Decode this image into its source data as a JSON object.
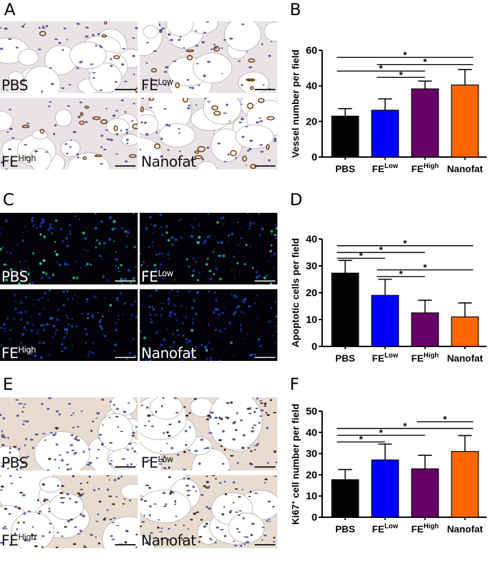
{
  "figure": {
    "panels": {
      "A": {
        "letter": "A",
        "type": "micrograph",
        "stain": "brightfield",
        "images": [
          {
            "label": "PBS",
            "sup": ""
          },
          {
            "label": "FE",
            "sup": "Low"
          },
          {
            "label": "FE",
            "sup": "High"
          },
          {
            "label": "Nanofat",
            "sup": ""
          }
        ]
      },
      "C": {
        "letter": "C",
        "type": "micrograph",
        "stain": "fluorescence",
        "images": [
          {
            "label": "PBS",
            "sup": ""
          },
          {
            "label": "FE",
            "sup": "Low"
          },
          {
            "label": "FE",
            "sup": "High"
          },
          {
            "label": "Nanofat",
            "sup": ""
          }
        ]
      },
      "E": {
        "letter": "E",
        "type": "micrograph",
        "stain": "brightfield",
        "images": [
          {
            "label": "PBS",
            "sup": ""
          },
          {
            "label": "FE",
            "sup": "Low"
          },
          {
            "label": "FE",
            "sup": "High"
          },
          {
            "label": "Nanofat",
            "sup": ""
          }
        ]
      }
    },
    "colors": {
      "PBS": "#000000",
      "FE_Low": "#0000ff",
      "FE_High": "#660066",
      "Nanofat": "#ff6600"
    }
  },
  "chart_data": [
    {
      "panel": "B",
      "type": "bar",
      "title": "",
      "xlabel": "",
      "ylabel": "Vessel number per field",
      "categories": [
        "PBS",
        "FE^Low",
        "FE^High",
        "Nanofat"
      ],
      "category_parts": [
        [
          "PBS",
          ""
        ],
        [
          "FE",
          "Low"
        ],
        [
          "FE",
          "High"
        ],
        [
          "Nanofat",
          ""
        ]
      ],
      "values": [
        23,
        26.3,
        38.3,
        40.5
      ],
      "error_upper": [
        27.2,
        32.7,
        42.7,
        49.2
      ],
      "ylim": [
        0,
        60
      ],
      "yticks": [
        0,
        20,
        40,
        60
      ],
      "grid": false,
      "legend": "none",
      "significance": [
        {
          "from": 0,
          "to": 3,
          "level": 56,
          "label": "*"
        },
        {
          "from": 1,
          "to": 3,
          "level": 52,
          "label": "*"
        },
        {
          "from": 0,
          "to": 2,
          "level": 48.3,
          "label": "*"
        },
        {
          "from": 1,
          "to": 2,
          "level": 44.8,
          "label": "*"
        }
      ]
    },
    {
      "panel": "D",
      "type": "bar",
      "title": "",
      "xlabel": "",
      "ylabel": "Apoptotic cells per field",
      "categories": [
        "PBS",
        "FE^Low",
        "FE^High",
        "Nanofat"
      ],
      "category_parts": [
        [
          "PBS",
          ""
        ],
        [
          "FE",
          "Low"
        ],
        [
          "FE",
          "High"
        ],
        [
          "Nanofat",
          ""
        ]
      ],
      "values": [
        27.3,
        19,
        12.5,
        11
      ],
      "error_upper": [
        32,
        25,
        17.2,
        16.2
      ],
      "ylim": [
        0,
        40
      ],
      "yticks": [
        0,
        10,
        20,
        30,
        40
      ],
      "grid": false,
      "legend": "none",
      "significance": [
        {
          "from": 0,
          "to": 3,
          "level": 37.5,
          "label": "*"
        },
        {
          "from": 0,
          "to": 2,
          "level": 35,
          "label": "*"
        },
        {
          "from": 0,
          "to": 1,
          "level": 32.8,
          "label": "*"
        },
        {
          "from": 1,
          "to": 3,
          "level": 28.5,
          "label": "*"
        },
        {
          "from": 1,
          "to": 2,
          "level": 26,
          "label": "*"
        }
      ]
    },
    {
      "panel": "F",
      "type": "bar",
      "title": "",
      "xlabel": "",
      "ylabel": "Ki67+ cell number per field",
      "ylabel_parts": [
        "Ki67",
        "+",
        " cell number per field"
      ],
      "categories": [
        "PBS",
        "FE^Low",
        "FE^High",
        "Nanofat"
      ],
      "category_parts": [
        [
          "PBS",
          ""
        ],
        [
          "FE",
          "Low"
        ],
        [
          "FE",
          "High"
        ],
        [
          "Nanofat",
          ""
        ]
      ],
      "values": [
        17.7,
        27,
        22.8,
        31
      ],
      "error_upper": [
        22.5,
        34.5,
        29.2,
        38.5
      ],
      "ylim": [
        0,
        50
      ],
      "yticks": [
        0,
        10,
        20,
        30,
        40,
        50
      ],
      "grid": false,
      "legend": "none",
      "significance": [
        {
          "from": 2,
          "to": 3,
          "level": 45,
          "label": "*"
        },
        {
          "from": 0,
          "to": 3,
          "level": 41.8,
          "label": "*"
        },
        {
          "from": 0,
          "to": 2,
          "level": 38.6,
          "label": "*"
        },
        {
          "from": 0,
          "to": 1,
          "level": 35.5,
          "label": "*"
        }
      ]
    }
  ]
}
